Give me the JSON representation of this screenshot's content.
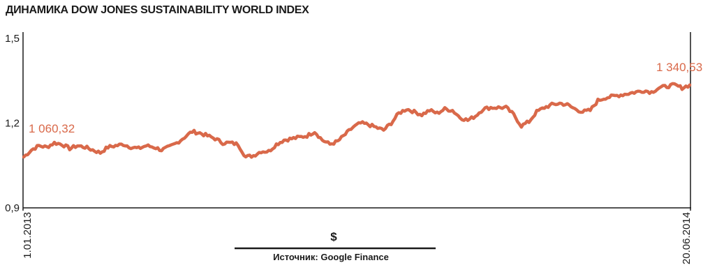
{
  "chart_data": {
    "type": "line",
    "title": "ДИНАМИКА DOW JONES SUSTAINABILITY WORLD INDEX",
    "unit": "$",
    "source": "Источник: Google Finance",
    "ylim": [
      0.9,
      1.5
    ],
    "y_ticks": [
      "0,9",
      "1,2",
      "1,5"
    ],
    "y_tick_values": [
      0.9,
      1.2,
      1.5
    ],
    "x_tick_labels": [
      "1.01.2013",
      "20.06.2014"
    ],
    "grid": false,
    "line_color": "#d9694a",
    "start_label": "1 060,32",
    "end_label": "1 340,53",
    "series": [
      {
        "values": [
          1.08,
          1.105,
          1.12,
          1.115,
          1.13,
          1.125,
          1.11,
          1.12,
          1.115,
          1.105,
          1.095,
          1.115,
          1.12,
          1.125,
          1.115,
          1.11,
          1.12,
          1.115,
          1.105,
          1.115,
          1.13,
          1.15,
          1.17,
          1.165,
          1.155,
          1.145,
          1.13,
          1.13,
          1.125,
          1.08,
          1.085,
          1.1,
          1.1,
          1.125,
          1.14,
          1.145,
          1.15,
          1.155,
          1.17,
          1.14,
          1.125,
          1.135,
          1.16,
          1.185,
          1.2,
          1.195,
          1.185,
          1.175,
          1.2,
          1.235,
          1.25,
          1.24,
          1.23,
          1.245,
          1.235,
          1.25,
          1.245,
          1.22,
          1.21,
          1.225,
          1.25,
          1.255,
          1.255,
          1.255,
          1.23,
          1.19,
          1.205,
          1.24,
          1.255,
          1.265,
          1.27,
          1.265,
          1.25,
          1.24,
          1.245,
          1.28,
          1.29,
          1.295,
          1.3,
          1.305,
          1.31,
          1.315,
          1.31,
          1.325,
          1.33,
          1.335,
          1.325,
          1.335
        ]
      }
    ]
  }
}
